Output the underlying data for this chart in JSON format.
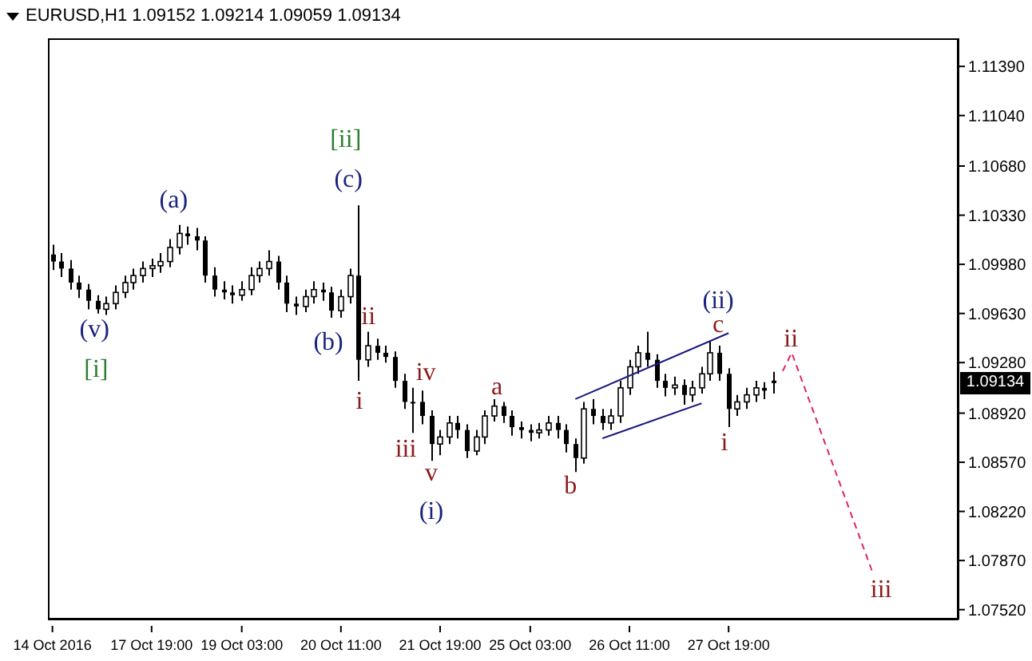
{
  "chart_data": {
    "type": "candlestick",
    "title": "EURUSD,H1 1.09152 1.09214 1.09059 1.09134",
    "categories": [
      "14 Oct 2016",
      null,
      null,
      null,
      null,
      null,
      null,
      null,
      null,
      null,
      null,
      "17 Oct 19:00",
      null,
      null,
      null,
      null,
      null,
      null,
      null,
      null,
      null,
      "19 Oct 03:00",
      null,
      null,
      null,
      null,
      null,
      null,
      null,
      null,
      null,
      null,
      "20 Oct 11:00",
      null,
      null,
      null,
      null,
      null,
      null,
      null,
      null,
      null,
      null,
      "21 Oct 19:00",
      null,
      null,
      null,
      null,
      null,
      null,
      null,
      null,
      null,
      "25 Oct 03:00",
      null,
      null,
      null,
      null,
      null,
      null,
      null,
      null,
      null,
      null,
      "26 Oct 11:00",
      null,
      null,
      null,
      null,
      null,
      null,
      null,
      null,
      null,
      null,
      "27 Oct 19:00",
      null,
      null,
      null,
      null,
      null,
      null,
      null,
      null,
      null,
      null,
      null,
      null,
      null,
      null,
      null,
      null,
      null,
      null,
      null,
      null,
      null,
      null,
      null,
      null,
      null
    ],
    "ohlc": [
      [
        1.1005,
        1.1012,
        1.0994,
        1.1
      ],
      [
        1.1,
        1.1006,
        1.0989,
        1.0995
      ],
      [
        1.0995,
        1.1001,
        1.098,
        1.0985
      ],
      [
        1.0985,
        1.099,
        1.0974,
        1.098
      ],
      [
        1.098,
        1.0984,
        1.0966,
        1.0972
      ],
      [
        1.0972,
        1.0976,
        1.0963,
        1.0966
      ],
      [
        1.0966,
        1.0975,
        1.0962,
        1.097
      ],
      [
        1.097,
        1.0983,
        1.0966,
        1.0978
      ],
      [
        1.0978,
        1.099,
        1.0974,
        1.0985
      ],
      [
        1.0985,
        1.0995,
        1.098,
        1.099
      ],
      [
        1.099,
        1.1,
        1.0985,
        1.0995
      ],
      [
        1.0995,
        1.1002,
        1.0989,
        1.0997
      ],
      [
        1.0997,
        1.1006,
        1.0992,
        1.1
      ],
      [
        1.1,
        1.1016,
        1.0996,
        1.101
      ],
      [
        1.101,
        1.1026,
        1.1005,
        1.102
      ],
      [
        1.102,
        1.1025,
        1.1012,
        1.1018
      ],
      [
        1.1018,
        1.1024,
        1.1008,
        1.1015
      ],
      [
        1.1015,
        1.1018,
        1.0985,
        1.099
      ],
      [
        1.099,
        1.0996,
        1.0975,
        1.098
      ],
      [
        1.098,
        1.0986,
        1.0973,
        1.0978
      ],
      [
        1.0978,
        1.0983,
        1.097,
        1.0976
      ],
      [
        1.0976,
        1.0986,
        1.0972,
        1.098
      ],
      [
        1.098,
        1.0996,
        1.0976,
        1.099
      ],
      [
        1.099,
        1.1,
        1.0985,
        1.0995
      ],
      [
        1.0995,
        1.1008,
        1.099,
        1.1
      ],
      [
        1.1,
        1.1004,
        1.098,
        1.0985
      ],
      [
        1.0985,
        1.099,
        1.0964,
        1.097
      ],
      [
        1.097,
        1.0975,
        1.0962,
        1.0968
      ],
      [
        1.0968,
        1.098,
        1.0964,
        1.0975
      ],
      [
        1.0975,
        1.0986,
        1.097,
        1.098
      ],
      [
        1.098,
        1.0985,
        1.0972,
        1.0978
      ],
      [
        1.0978,
        1.0982,
        1.096,
        1.0965
      ],
      [
        1.0965,
        1.098,
        1.096,
        1.0975
      ],
      [
        1.0975,
        1.0995,
        1.097,
        1.099
      ],
      [
        1.099,
        1.104,
        1.0915,
        1.093
      ],
      [
        1.093,
        1.095,
        1.0925,
        1.094
      ],
      [
        1.094,
        1.0945,
        1.093,
        1.0935
      ],
      [
        1.0935,
        1.094,
        1.0928,
        1.0932
      ],
      [
        1.0932,
        1.0936,
        1.091,
        1.0915
      ],
      [
        1.0915,
        1.092,
        1.0895,
        1.09
      ],
      [
        1.09,
        1.091,
        1.0878,
        1.09
      ],
      [
        1.09,
        1.0908,
        1.0884,
        1.089
      ],
      [
        1.089,
        1.0894,
        1.0858,
        1.087
      ],
      [
        1.087,
        1.088,
        1.0862,
        1.0875
      ],
      [
        1.0875,
        1.089,
        1.087,
        1.0885
      ],
      [
        1.0885,
        1.089,
        1.0874,
        1.088
      ],
      [
        1.088,
        1.0884,
        1.086,
        1.0865
      ],
      [
        1.0865,
        1.088,
        1.0862,
        1.0875
      ],
      [
        1.0875,
        1.0894,
        1.087,
        1.089
      ],
      [
        1.089,
        1.0902,
        1.0886,
        1.0897
      ],
      [
        1.0897,
        1.09,
        1.0885,
        1.089
      ],
      [
        1.089,
        1.0894,
        1.0876,
        1.0882
      ],
      [
        1.0882,
        1.0886,
        1.0874,
        1.088
      ],
      [
        1.088,
        1.0884,
        1.0872,
        1.0878
      ],
      [
        1.0878,
        1.0885,
        1.0874,
        1.088
      ],
      [
        1.088,
        1.089,
        1.0876,
        1.0885
      ],
      [
        1.0885,
        1.089,
        1.0874,
        1.088
      ],
      [
        1.088,
        1.0884,
        1.0864,
        1.087
      ],
      [
        1.087,
        1.0874,
        1.085,
        1.086
      ],
      [
        1.086,
        1.09,
        1.0856,
        1.0895
      ],
      [
        1.0895,
        1.0902,
        1.0884,
        1.089
      ],
      [
        1.089,
        1.0895,
        1.088,
        1.0885
      ],
      [
        1.0885,
        1.0895,
        1.088,
        1.089
      ],
      [
        1.089,
        1.0915,
        1.0885,
        1.091
      ],
      [
        1.091,
        1.093,
        1.0905,
        1.0925
      ],
      [
        1.0925,
        1.094,
        1.092,
        1.0935
      ],
      [
        1.0935,
        1.095,
        1.0925,
        1.093
      ],
      [
        1.093,
        1.0934,
        1.091,
        1.0915
      ],
      [
        1.0915,
        1.092,
        1.0904,
        1.091
      ],
      [
        1.091,
        1.0918,
        1.0905,
        1.0912
      ],
      [
        1.0912,
        1.0916,
        1.0898,
        1.0905
      ],
      [
        1.0905,
        1.0915,
        1.09,
        1.091
      ],
      [
        1.091,
        1.0925,
        1.0906,
        1.092
      ],
      [
        1.092,
        1.0943,
        1.0915,
        1.0935
      ],
      [
        1.0935,
        1.094,
        1.0915,
        1.092
      ],
      [
        1.092,
        1.0924,
        1.0882,
        1.0895
      ],
      [
        1.0895,
        1.0905,
        1.089,
        1.09
      ],
      [
        1.09,
        1.091,
        1.0895,
        1.0905
      ],
      [
        1.0905,
        1.0915,
        1.09,
        1.091
      ],
      [
        1.091,
        1.0914,
        1.0902,
        1.0908
      ],
      [
        1.09152,
        1.09214,
        1.09059,
        1.09134
      ],
      null,
      null,
      null,
      null,
      null,
      null,
      null,
      null,
      null,
      null,
      null,
      null,
      null,
      null,
      null,
      null,
      null,
      null,
      null,
      null
    ],
    "color": "#000000",
    "series": [
      {
        "type": "line",
        "color": "#1a1a80",
        "values": [
          null,
          null,
          null,
          null,
          null,
          null,
          null,
          null,
          null,
          null,
          null,
          null,
          null,
          null,
          null,
          null,
          null,
          null,
          null,
          null,
          null,
          null,
          null,
          null,
          null,
          null,
          null,
          null,
          null,
          null,
          null,
          null,
          null,
          null,
          null,
          null,
          null,
          null,
          null,
          null,
          null,
          null,
          null,
          null,
          null,
          null,
          null,
          null,
          null,
          null,
          null,
          null,
          null,
          null,
          null,
          null,
          null,
          null,
          1.0902,
          null,
          null,
          null,
          null,
          null,
          null,
          null,
          null,
          null,
          null,
          null,
          null,
          null,
          null,
          null,
          null,
          1.0949,
          null,
          null,
          null,
          null,
          null,
          null,
          null,
          null,
          null,
          null,
          null,
          null,
          null,
          null,
          null,
          null,
          null,
          null,
          null,
          null,
          null,
          null,
          null,
          null,
          null
        ]
      },
      {
        "type": "line",
        "color": "#1a1a80",
        "values": [
          null,
          null,
          null,
          null,
          null,
          null,
          null,
          null,
          null,
          null,
          null,
          null,
          null,
          null,
          null,
          null,
          null,
          null,
          null,
          null,
          null,
          null,
          null,
          null,
          null,
          null,
          null,
          null,
          null,
          null,
          null,
          null,
          null,
          null,
          null,
          null,
          null,
          null,
          null,
          null,
          null,
          null,
          null,
          null,
          null,
          null,
          null,
          null,
          null,
          null,
          null,
          null,
          null,
          null,
          null,
          null,
          null,
          null,
          null,
          null,
          null,
          1.0874,
          null,
          null,
          null,
          null,
          null,
          null,
          null,
          null,
          null,
          null,
          1.0899,
          null,
          null,
          null,
          null,
          null,
          null,
          null,
          null,
          null,
          null,
          null,
          null,
          null,
          null,
          null,
          null,
          null,
          null,
          null,
          null,
          null,
          null,
          null,
          null,
          null,
          null,
          null,
          null
        ]
      },
      {
        "type": "line",
        "color": "#e0245e",
        "line_style": "dashed",
        "values": [
          null,
          null,
          null,
          null,
          null,
          null,
          null,
          null,
          null,
          null,
          null,
          null,
          null,
          null,
          null,
          null,
          null,
          null,
          null,
          null,
          null,
          null,
          null,
          null,
          null,
          null,
          null,
          null,
          null,
          null,
          null,
          null,
          null,
          null,
          null,
          null,
          null,
          null,
          null,
          null,
          null,
          null,
          null,
          null,
          null,
          null,
          null,
          null,
          null,
          null,
          null,
          null,
          null,
          null,
          null,
          null,
          null,
          null,
          null,
          null,
          null,
          null,
          null,
          null,
          null,
          null,
          null,
          null,
          null,
          null,
          null,
          null,
          null,
          null,
          null,
          null,
          null,
          null,
          null,
          null,
          null,
          1.0922,
          1.0935,
          null,
          null,
          null,
          null,
          null,
          null,
          null,
          null,
          1.0778,
          null,
          null,
          null,
          null,
          null,
          null,
          null,
          null,
          null
        ]
      }
    ],
    "ylim": [
      1.0745,
      1.1159
    ],
    "yticks": [
      {
        "value": 1.0752,
        "label": "1.07520"
      },
      {
        "value": 1.0787,
        "label": "1.07870"
      },
      {
        "value": 1.0822,
        "label": "1.08220"
      },
      {
        "value": 1.0857,
        "label": "1.08570"
      },
      {
        "value": 1.0892,
        "label": "1.08920"
      },
      {
        "value": 1.0928,
        "label": "1.09280"
      },
      {
        "value": 1.0963,
        "label": "1.09630"
      },
      {
        "value": 1.0998,
        "label": "1.09980"
      },
      {
        "value": 1.1033,
        "label": "1.10330"
      },
      {
        "value": 1.1068,
        "label": "1.10680"
      },
      {
        "value": 1.1104,
        "label": "1.11040"
      },
      {
        "value": 1.1139,
        "label": "1.11390"
      }
    ],
    "annotations": [
      "[ii]",
      "(c)",
      "(a)",
      "(v)",
      "[i]",
      "(b)",
      "ii",
      "i",
      "iv",
      "iii",
      "v",
      "(i)",
      "a",
      "b",
      "(ii)",
      "c",
      "i",
      "ii",
      "iii",
      "1.09134"
    ]
  }
}
